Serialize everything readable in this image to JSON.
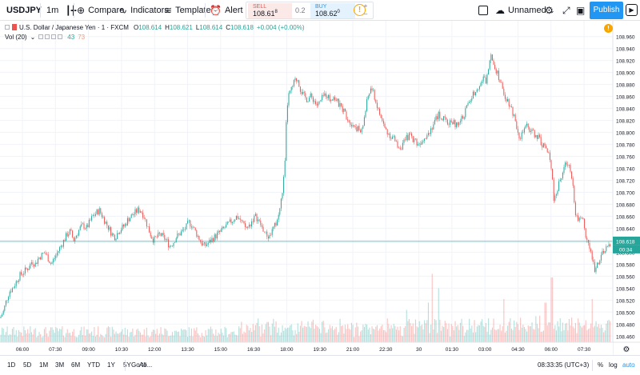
{
  "toolbar": {
    "symbol": "USDJPY",
    "interval": "1m",
    "compare_label": "Compare",
    "indicators_label": "Indicators",
    "templates_label": "Templates",
    "alert_label": "Alert",
    "layout_label": "Unnamed",
    "publish_label": "Publish"
  },
  "trade": {
    "sell_label": "SELL",
    "sell_main": "108.61",
    "sell_sup": "8",
    "spread": "0.2",
    "buy_label": "BUY",
    "buy_main": "108.62",
    "buy_sup": "0"
  },
  "legend": {
    "title": "U.S. Dollar / Japanese Yen · 1 · FXCM",
    "open": "108.614",
    "high": "108.621",
    "low": "108.614",
    "close": "108.618",
    "change": "+0.004 (+0.00%)",
    "vol_label": "Vol (20)",
    "vol_value_1": "43",
    "vol_value_2": "73"
  },
  "price_axis": {
    "labels": [
      "108.960",
      "108.940",
      "108.920",
      "108.900",
      "108.880",
      "108.860",
      "108.840",
      "108.820",
      "108.800",
      "108.780",
      "108.760",
      "108.740",
      "108.720",
      "108.700",
      "108.680",
      "108.660",
      "108.640",
      "108.620",
      "108.600",
      "108.580",
      "108.560",
      "108.540",
      "108.520",
      "108.500",
      "108.480",
      "108.460"
    ],
    "current_price": "108.618",
    "countdown": "00:34"
  },
  "time_axis": {
    "labels": [
      "06:00",
      "07:30",
      "09:00",
      "10:30",
      "12:00",
      "13:30",
      "15:00",
      "16:30",
      "18:00",
      "19:30",
      "21:00",
      "22:30",
      "30",
      "01:30",
      "03:00",
      "04:30",
      "06:00",
      "07:30"
    ]
  },
  "bottom_bar": {
    "ranges": [
      "1D",
      "5D",
      "1M",
      "3M",
      "6M",
      "YTD",
      "1Y",
      "5Y",
      "All"
    ],
    "goto_label": "Go to...",
    "time": "08:33:35 (UTC+3)",
    "percent_label": "%",
    "log_label": "log",
    "auto_label": "auto"
  },
  "colors": {
    "up": "#26a69a",
    "down": "#ef5350",
    "accent": "#2196f3",
    "price_line": "#26a69a",
    "warning": "#f7a600"
  },
  "chart_data": {
    "type": "candlestick",
    "symbol": "USDJPY",
    "interval": "1",
    "ylim": [
      108.455,
      108.965
    ],
    "path_points": [
      [
        0,
        108.49
      ],
      [
        4,
        108.5
      ],
      [
        8,
        108.52
      ],
      [
        12,
        108.535
      ],
      [
        16,
        108.54
      ],
      [
        20,
        108.55
      ],
      [
        24,
        108.56
      ],
      [
        28,
        108.565
      ],
      [
        32,
        108.57
      ],
      [
        36,
        108.575
      ],
      [
        40,
        108.585
      ],
      [
        44,
        108.58
      ],
      [
        48,
        108.59
      ],
      [
        52,
        108.595
      ],
      [
        56,
        108.6
      ],
      [
        60,
        108.59
      ],
      [
        64,
        108.58
      ],
      [
        68,
        108.59
      ],
      [
        72,
        108.6
      ],
      [
        76,
        108.61
      ],
      [
        80,
        108.62
      ],
      [
        84,
        108.63
      ],
      [
        88,
        108.635
      ],
      [
        92,
        108.62
      ],
      [
        96,
        108.63
      ],
      [
        100,
        108.64
      ],
      [
        104,
        108.645
      ],
      [
        108,
        108.64
      ],
      [
        112,
        108.65
      ],
      [
        116,
        108.66
      ],
      [
        120,
        108.665
      ],
      [
        124,
        108.67
      ],
      [
        128,
        108.66
      ],
      [
        132,
        108.65
      ],
      [
        136,
        108.64
      ],
      [
        140,
        108.63
      ],
      [
        144,
        108.625
      ],
      [
        148,
        108.635
      ],
      [
        152,
        108.64
      ],
      [
        156,
        108.645
      ],
      [
        160,
        108.655
      ],
      [
        164,
        108.66
      ],
      [
        168,
        108.665
      ],
      [
        172,
        108.67
      ],
      [
        176,
        108.67
      ],
      [
        180,
        108.66
      ],
      [
        184,
        108.645
      ],
      [
        188,
        108.63
      ],
      [
        192,
        108.62
      ],
      [
        196,
        108.625
      ],
      [
        200,
        108.63
      ],
      [
        204,
        108.625
      ],
      [
        208,
        108.62
      ],
      [
        212,
        108.61
      ],
      [
        216,
        108.615
      ],
      [
        220,
        108.625
      ],
      [
        224,
        108.63
      ],
      [
        228,
        108.635
      ],
      [
        232,
        108.64
      ],
      [
        236,
        108.65
      ],
      [
        240,
        108.645
      ],
      [
        244,
        108.635
      ],
      [
        248,
        108.625
      ],
      [
        252,
        108.615
      ],
      [
        256,
        108.61
      ],
      [
        260,
        108.615
      ],
      [
        264,
        108.62
      ],
      [
        268,
        108.625
      ],
      [
        272,
        108.63
      ],
      [
        276,
        108.635
      ],
      [
        280,
        108.64
      ],
      [
        284,
        108.645
      ],
      [
        288,
        108.65
      ],
      [
        292,
        108.655
      ],
      [
        296,
        108.66
      ],
      [
        300,
        108.655
      ],
      [
        304,
        108.645
      ],
      [
        308,
        108.64
      ],
      [
        312,
        108.645
      ],
      [
        316,
        108.655
      ],
      [
        320,
        108.66
      ],
      [
        324,
        108.65
      ],
      [
        328,
        108.64
      ],
      [
        332,
        108.63
      ],
      [
        336,
        108.625
      ],
      [
        340,
        108.635
      ],
      [
        344,
        108.645
      ],
      [
        348,
        108.66
      ],
      [
        352,
        108.69
      ],
      [
        356,
        108.74
      ],
      [
        358,
        108.82
      ],
      [
        360,
        108.86
      ],
      [
        364,
        108.87
      ],
      [
        368,
        108.885
      ],
      [
        372,
        108.89
      ],
      [
        376,
        108.87
      ],
      [
        380,
        108.86
      ],
      [
        384,
        108.855
      ],
      [
        388,
        108.86
      ],
      [
        392,
        108.855
      ],
      [
        396,
        108.845
      ],
      [
        400,
        108.85
      ],
      [
        404,
        108.86
      ],
      [
        408,
        108.865
      ],
      [
        412,
        108.855
      ],
      [
        416,
        108.86
      ],
      [
        420,
        108.855
      ],
      [
        424,
        108.845
      ],
      [
        428,
        108.84
      ],
      [
        432,
        108.83
      ],
      [
        436,
        108.82
      ],
      [
        440,
        108.815
      ],
      [
        444,
        108.81
      ],
      [
        448,
        108.805
      ],
      [
        452,
        108.8
      ],
      [
        456,
        108.83
      ],
      [
        460,
        108.86
      ],
      [
        464,
        108.875
      ],
      [
        468,
        108.86
      ],
      [
        472,
        108.84
      ],
      [
        476,
        108.825
      ],
      [
        480,
        108.81
      ],
      [
        484,
        108.8
      ],
      [
        488,
        108.795
      ],
      [
        492,
        108.79
      ],
      [
        496,
        108.78
      ],
      [
        500,
        108.775
      ],
      [
        504,
        108.78
      ],
      [
        508,
        108.79
      ],
      [
        512,
        108.795
      ],
      [
        516,
        108.79
      ],
      [
        520,
        108.785
      ],
      [
        524,
        108.78
      ],
      [
        528,
        108.79
      ],
      [
        532,
        108.795
      ],
      [
        536,
        108.8
      ],
      [
        540,
        108.81
      ],
      [
        544,
        108.82
      ],
      [
        548,
        108.83
      ],
      [
        552,
        108.825
      ],
      [
        556,
        108.82
      ],
      [
        560,
        108.815
      ],
      [
        564,
        108.82
      ],
      [
        568,
        108.815
      ],
      [
        572,
        108.81
      ],
      [
        576,
        108.82
      ],
      [
        580,
        108.83
      ],
      [
        584,
        108.845
      ],
      [
        588,
        108.855
      ],
      [
        592,
        108.865
      ],
      [
        596,
        108.875
      ],
      [
        600,
        108.88
      ],
      [
        604,
        108.89
      ],
      [
        608,
        108.885
      ],
      [
        612,
        108.92
      ],
      [
        614,
        108.935
      ],
      [
        618,
        108.91
      ],
      [
        622,
        108.9
      ],
      [
        626,
        108.88
      ],
      [
        630,
        108.865
      ],
      [
        634,
        108.855
      ],
      [
        638,
        108.845
      ],
      [
        642,
        108.83
      ],
      [
        646,
        108.81
      ],
      [
        650,
        108.79
      ],
      [
        654,
        108.8
      ],
      [
        658,
        108.81
      ],
      [
        662,
        108.805
      ],
      [
        666,
        108.8
      ],
      [
        670,
        108.795
      ],
      [
        674,
        108.79
      ],
      [
        678,
        108.78
      ],
      [
        682,
        108.775
      ],
      [
        686,
        108.76
      ],
      [
        690,
        108.74
      ],
      [
        692,
        108.69
      ],
      [
        696,
        108.7
      ],
      [
        700,
        108.72
      ],
      [
        704,
        108.735
      ],
      [
        708,
        108.75
      ],
      [
        712,
        108.745
      ],
      [
        716,
        108.72
      ],
      [
        718,
        108.68
      ],
      [
        720,
        108.66
      ],
      [
        724,
        108.655
      ],
      [
        728,
        108.66
      ],
      [
        732,
        108.63
      ],
      [
        736,
        108.61
      ],
      [
        740,
        108.59
      ],
      [
        744,
        108.57
      ],
      [
        748,
        108.585
      ],
      [
        752,
        108.595
      ],
      [
        756,
        108.6
      ],
      [
        760,
        108.61
      ],
      [
        764,
        108.618
      ]
    ],
    "volume_spikes": [
      [
        540,
        0.95
      ],
      [
        548,
        0.75
      ],
      [
        535,
        0.55
      ],
      [
        690,
        0.9
      ],
      [
        682,
        0.55
      ],
      [
        740,
        0.6
      ],
      [
        508,
        0.45
      ],
      [
        630,
        0.6
      ]
    ]
  }
}
